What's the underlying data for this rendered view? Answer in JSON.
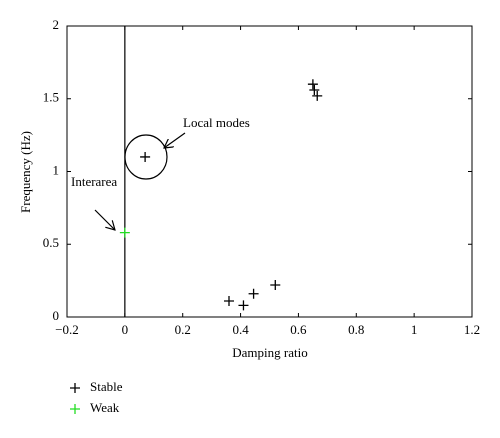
{
  "chart_data": {
    "type": "scatter",
    "xlabel": "Damping ratio",
    "ylabel": "Frequency (Hz)",
    "xlim": [
      -0.2,
      1.2
    ],
    "ylim": [
      0,
      2
    ],
    "xticks": [
      {
        "value": -0.2,
        "label": "−0.2"
      },
      0,
      0.2,
      0.4,
      0.6,
      0.8,
      1,
      1.2
    ],
    "yticks": [
      0,
      0.5,
      1,
      1.5,
      2
    ],
    "reference_line_x": 0,
    "series": [
      {
        "name": "Stable",
        "color": "#000000",
        "x": [
          0.07,
          0.65,
          0.655,
          0.665,
          0.36,
          0.41,
          0.445,
          0.52
        ],
        "values": [
          1.1,
          1.6,
          1.56,
          1.52,
          0.11,
          0.08,
          0.16,
          0.22
        ]
      },
      {
        "name": "Weak",
        "color": "#22dd22",
        "x": [
          0.0
        ],
        "values": [
          0.58
        ]
      }
    ],
    "annotations": [
      "Local modes",
      "Interarea"
    ],
    "legend": "below"
  }
}
